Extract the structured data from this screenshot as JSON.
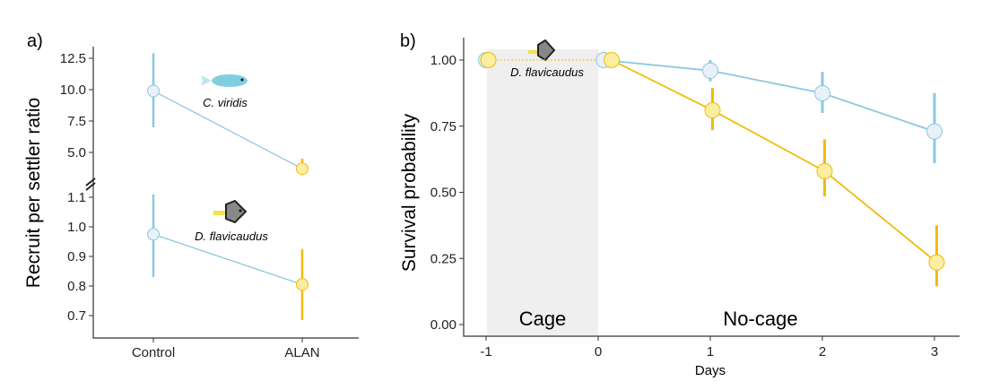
{
  "colors": {
    "control": "#8ec7e0",
    "control_fill": "#e8f1f8",
    "alan": "#f0bc0a",
    "alan_fill": "#fbeea0",
    "cage_bg": "#efefef"
  },
  "chart_data": [
    {
      "panel_label": "a)",
      "type": "scatter",
      "ylabel": "Recruit per settler ratio",
      "categories": [
        "Control",
        "ALAN"
      ],
      "y_break": true,
      "upper": {
        "ticks": [
          "12.5",
          "10.0",
          "7.5",
          "5.0"
        ],
        "tick_values": [
          12.5,
          10.0,
          7.5,
          5.0
        ],
        "ylim": [
          2.8,
          13.3
        ],
        "series": {
          "name": "C. viridis",
          "values": [
            9.9,
            3.7
          ],
          "err_low": [
            7.0,
            3.2
          ],
          "err_high": [
            12.9,
            4.5
          ]
        }
      },
      "lower": {
        "ticks": [
          "1.1",
          "1.0",
          "0.9",
          "0.8",
          "0.7"
        ],
        "tick_values": [
          1.1,
          1.0,
          0.9,
          0.8,
          0.7
        ],
        "series": {
          "name": "D. flavicaudus",
          "values": [
            0.975,
            0.805
          ],
          "err_low": [
            0.83,
            0.685
          ],
          "err_high": [
            1.11,
            0.925
          ]
        }
      }
    },
    {
      "panel_label": "b)",
      "type": "line",
      "ylabel": "Survival probability",
      "xlabel": "Days",
      "species": "D. flavicaudus",
      "xticks": [
        "-1",
        "0",
        "1",
        "2",
        "3"
      ],
      "xtick_values": [
        -1,
        0,
        1,
        2,
        3
      ],
      "xlim": [
        -1.2,
        3.2
      ],
      "yticks": [
        "1.00",
        "0.75",
        "0.50",
        "0.25",
        "0.00"
      ],
      "ytick_values": [
        1,
        0.75,
        0.5,
        0.25,
        0
      ],
      "ylim": [
        -0.05,
        1.05
      ],
      "regions": [
        {
          "label": "Cage",
          "from": -1,
          "to": 0
        },
        {
          "label": "No-cage",
          "from": 0,
          "to": 3
        }
      ],
      "series": [
        {
          "name": "Control",
          "x": [
            -1,
            0.05,
            1,
            2,
            3
          ],
          "values": [
            1.0,
            1.0,
            0.96,
            0.875,
            0.73
          ],
          "err_low": [
            1,
            1,
            0.92,
            0.8,
            0.61
          ],
          "err_high": [
            1,
            1,
            1.0,
            0.955,
            0.875
          ]
        },
        {
          "name": "ALAN",
          "x": [
            -0.98,
            0.12,
            1.02,
            2.02,
            3.02
          ],
          "values": [
            1.0,
            1.0,
            0.81,
            0.58,
            0.235
          ],
          "err_low": [
            1,
            1,
            0.735,
            0.485,
            0.145
          ],
          "err_high": [
            1,
            1,
            0.895,
            0.7,
            0.375
          ]
        }
      ]
    }
  ]
}
